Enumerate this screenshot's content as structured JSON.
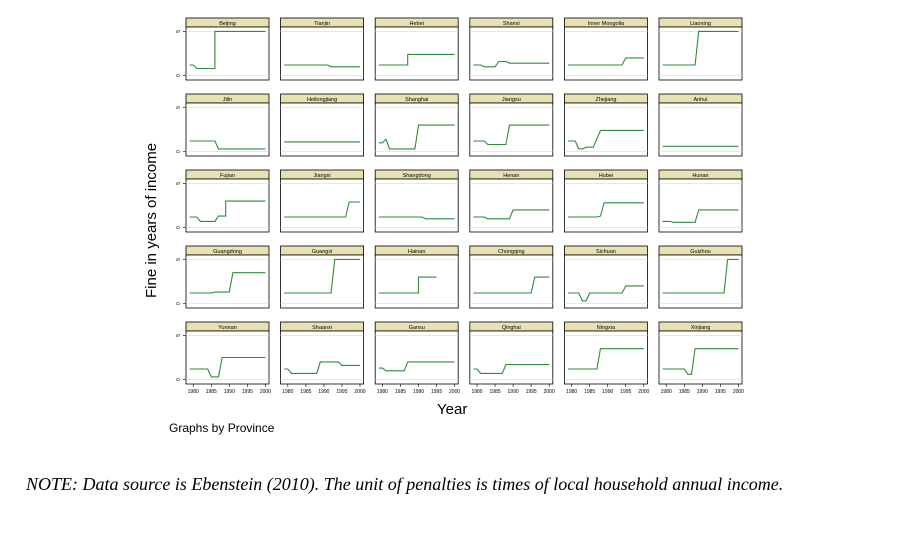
{
  "chart_data": {
    "type": "line",
    "layout": "small-multiples",
    "ylabel": "Fine in years of income",
    "xlabel": "Year",
    "x_ticks": [
      1980,
      1985,
      1990,
      1995,
      2000
    ],
    "y_ticks": [
      0,
      5
    ],
    "xlim": [
      1978,
      2001
    ],
    "ylim": [
      -0.5,
      5.5
    ],
    "caption": "Graphs by Province",
    "colors": {
      "line": "#2e8b3a",
      "strip": "#e8e1b1",
      "panel_border": "#000000",
      "grid": "#d9d9d9"
    },
    "panels": [
      {
        "name": "Beijing",
        "segments": [
          [
            1979,
            1.2
          ],
          [
            1980,
            1.2
          ],
          [
            1981,
            0.8
          ],
          [
            1985,
            0.8
          ],
          [
            1986,
            0.8
          ],
          [
            1986,
            5
          ],
          [
            2000,
            5
          ]
        ]
      },
      {
        "name": "Tianjin",
        "segments": [
          [
            1979,
            1.2
          ],
          [
            1991,
            1.2
          ],
          [
            1992,
            1.0
          ],
          [
            2000,
            1.0
          ]
        ]
      },
      {
        "name": "Hebei",
        "segments": [
          [
            1979,
            1.2
          ],
          [
            1987,
            1.2
          ],
          [
            1987,
            2.4
          ],
          [
            2000,
            2.4
          ]
        ]
      },
      {
        "name": "Shanxi",
        "segments": [
          [
            1979,
            1.2
          ],
          [
            1981,
            1.2
          ],
          [
            1982,
            1.0
          ],
          [
            1985,
            1.0
          ],
          [
            1986,
            1.6
          ],
          [
            1988,
            1.6
          ],
          [
            1989,
            1.4
          ],
          [
            2000,
            1.4
          ]
        ]
      },
      {
        "name": "Inner Mongolia",
        "segments": [
          [
            1979,
            1.2
          ],
          [
            1994,
            1.2
          ],
          [
            1995,
            2.0
          ],
          [
            2000,
            2.0
          ]
        ]
      },
      {
        "name": "Liaoning",
        "segments": [
          [
            1979,
            1.2
          ],
          [
            1988,
            1.2
          ],
          [
            1989,
            5
          ],
          [
            2000,
            5
          ]
        ]
      },
      {
        "name": "Jilin",
        "segments": [
          [
            1979,
            1.2
          ],
          [
            1986,
            1.2
          ],
          [
            1987,
            0.3
          ],
          [
            2000,
            0.3
          ]
        ]
      },
      {
        "name": "Heilongjiang",
        "segments": [
          [
            1979,
            1.1
          ],
          [
            2000,
            1.1
          ]
        ]
      },
      {
        "name": "Shanghai",
        "segments": [
          [
            1979,
            1.0
          ],
          [
            1980,
            1.0
          ],
          [
            1981,
            1.4
          ],
          [
            1982,
            0.3
          ],
          [
            1989,
            0.3
          ],
          [
            1990,
            3.0
          ],
          [
            2000,
            3.0
          ]
        ]
      },
      {
        "name": "Jiangsu",
        "segments": [
          [
            1979,
            1.2
          ],
          [
            1982,
            1.2
          ],
          [
            1983,
            0.8
          ],
          [
            1988,
            0.8
          ],
          [
            1989,
            3.0
          ],
          [
            2000,
            3.0
          ]
        ]
      },
      {
        "name": "Zhejiang",
        "segments": [
          [
            1979,
            1.2
          ],
          [
            1981,
            1.2
          ],
          [
            1982,
            0.3
          ],
          [
            1983,
            0.3
          ],
          [
            1984,
            0.5
          ],
          [
            1986,
            0.5
          ],
          [
            1988,
            2.4
          ],
          [
            2000,
            2.4
          ]
        ]
      },
      {
        "name": "Anhui",
        "segments": [
          [
            1979,
            0.6
          ],
          [
            2000,
            0.6
          ]
        ]
      },
      {
        "name": "Fujian",
        "segments": [
          [
            1979,
            1.2
          ],
          [
            1981,
            1.2
          ],
          [
            1982,
            0.7
          ],
          [
            1986,
            0.7
          ],
          [
            1987,
            1.3
          ],
          [
            1989,
            1.3
          ],
          [
            1989,
            3.0
          ],
          [
            2000,
            3.0
          ]
        ]
      },
      {
        "name": "Jiangxi",
        "segments": [
          [
            1979,
            1.2
          ],
          [
            1996,
            1.2
          ],
          [
            1997,
            2.9
          ],
          [
            2000,
            2.9
          ]
        ]
      },
      {
        "name": "Shangdong",
        "segments": [
          [
            1979,
            1.2
          ],
          [
            1991,
            1.2
          ],
          [
            1992,
            1.0
          ],
          [
            2000,
            1.0
          ]
        ]
      },
      {
        "name": "Henan",
        "segments": [
          [
            1979,
            1.2
          ],
          [
            1982,
            1.2
          ],
          [
            1983,
            1.0
          ],
          [
            1989,
            1.0
          ],
          [
            1990,
            2.0
          ],
          [
            2000,
            2.0
          ]
        ]
      },
      {
        "name": "Hubei",
        "segments": [
          [
            1979,
            1.2
          ],
          [
            1987,
            1.2
          ],
          [
            1988,
            1.3
          ],
          [
            1989,
            2.8
          ],
          [
            2000,
            2.8
          ]
        ]
      },
      {
        "name": "Hunan",
        "segments": [
          [
            1979,
            0.7
          ],
          [
            1981,
            0.7
          ],
          [
            1982,
            0.6
          ],
          [
            1988,
            0.6
          ],
          [
            1989,
            2.0
          ],
          [
            2000,
            2.0
          ]
        ]
      },
      {
        "name": "Guangdong",
        "segments": [
          [
            1979,
            1.2
          ],
          [
            1985,
            1.2
          ],
          [
            1986,
            1.3
          ],
          [
            1990,
            1.3
          ],
          [
            1991,
            3.5
          ],
          [
            2000,
            3.5
          ]
        ]
      },
      {
        "name": "Guangxi",
        "segments": [
          [
            1979,
            1.2
          ],
          [
            1992,
            1.2
          ],
          [
            1993,
            5
          ],
          [
            2000,
            5
          ]
        ]
      },
      {
        "name": "Hainan",
        "segments": [
          [
            1979,
            1.2
          ],
          [
            1990,
            1.2
          ],
          [
            1990,
            3.0
          ],
          [
            1995,
            3.0
          ]
        ]
      },
      {
        "name": "Chongqing",
        "segments": [
          [
            1979,
            1.2
          ],
          [
            1995,
            1.2
          ],
          [
            1996,
            3.0
          ],
          [
            2000,
            3.0
          ]
        ]
      },
      {
        "name": "Sichuan",
        "segments": [
          [
            1979,
            1.2
          ],
          [
            1982,
            1.2
          ],
          [
            1983,
            0.3
          ],
          [
            1984,
            0.3
          ],
          [
            1985,
            1.2
          ],
          [
            1994,
            1.2
          ],
          [
            1995,
            2.0
          ],
          [
            2000,
            2.0
          ]
        ]
      },
      {
        "name": "Guizhou",
        "segments": [
          [
            1979,
            1.2
          ],
          [
            1996,
            1.2
          ],
          [
            1997,
            5
          ],
          [
            2000,
            5
          ]
        ]
      },
      {
        "name": "Yunnan",
        "segments": [
          [
            1979,
            1.2
          ],
          [
            1984,
            1.2
          ],
          [
            1985,
            0.3
          ],
          [
            1987,
            0.3
          ],
          [
            1988,
            2.5
          ],
          [
            2000,
            2.5
          ]
        ]
      },
      {
        "name": "Shaanxi",
        "segments": [
          [
            1979,
            1.2
          ],
          [
            1980,
            1.2
          ],
          [
            1981,
            0.7
          ],
          [
            1988,
            0.7
          ],
          [
            1989,
            2.0
          ],
          [
            1994,
            2.0
          ],
          [
            1995,
            1.6
          ],
          [
            2000,
            1.6
          ]
        ]
      },
      {
        "name": "Gansu",
        "segments": [
          [
            1979,
            1.3
          ],
          [
            1980,
            1.3
          ],
          [
            1981,
            1.0
          ],
          [
            1986,
            1.0
          ],
          [
            1987,
            2.0
          ],
          [
            2000,
            2.0
          ]
        ]
      },
      {
        "name": "Qinghai",
        "segments": [
          [
            1979,
            1.2
          ],
          [
            1980,
            1.2
          ],
          [
            1981,
            0.7
          ],
          [
            1987,
            0.7
          ],
          [
            1988,
            1.7
          ],
          [
            2000,
            1.7
          ]
        ]
      },
      {
        "name": "Ningxia",
        "segments": [
          [
            1979,
            1.2
          ],
          [
            1987,
            1.2
          ],
          [
            1988,
            3.5
          ],
          [
            2000,
            3.5
          ]
        ]
      },
      {
        "name": "Xinjiang",
        "segments": [
          [
            1979,
            1.2
          ],
          [
            1985,
            1.2
          ],
          [
            1986,
            0.6
          ],
          [
            1987,
            0.6
          ],
          [
            1988,
            3.5
          ],
          [
            2000,
            3.5
          ]
        ]
      }
    ]
  },
  "note": "NOTE: Data source is Ebenstein (2010). The unit of penalties is times of local household annual income."
}
